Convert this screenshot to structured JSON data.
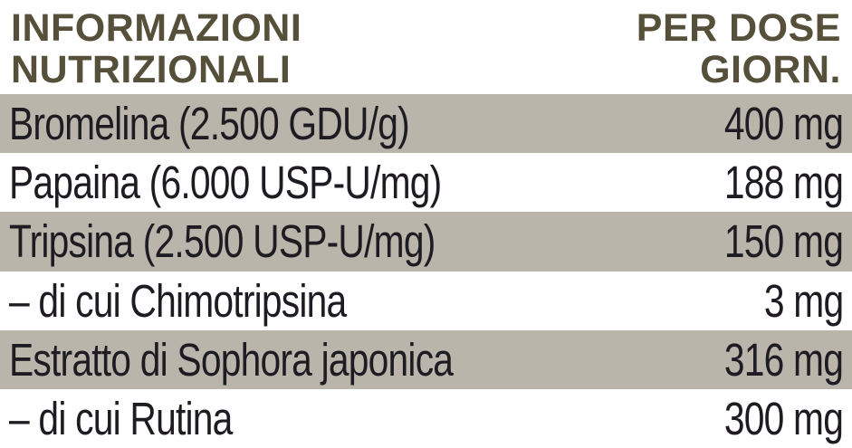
{
  "header": {
    "title_line1": "INFORMAZIONI",
    "title_line2": "NUTRIZIONALI",
    "dose_line1": "PER DOSE",
    "dose_line2": "GIORN."
  },
  "rows": [
    {
      "label": "Bromelina (2.500 GDU/g)",
      "value": "400 mg",
      "shaded": true
    },
    {
      "label": "Papaina (6.000 USP-U/mg)",
      "value": "188 mg",
      "shaded": false
    },
    {
      "label": "Tripsina (2.500 USP-U/mg)",
      "value": "150 mg",
      "shaded": true
    },
    {
      "label": "– di cui Chimotripsina",
      "value": "3 mg",
      "shaded": false
    },
    {
      "label": "Estratto di Sophora japonica",
      "value": "316 mg",
      "shaded": true
    },
    {
      "label": "– di cui Rutina",
      "value": "300 mg",
      "shaded": false
    }
  ],
  "colors": {
    "header_text": "#56503B",
    "row_text": "#1E1C22",
    "shaded_row_bg": "#B9B5AA",
    "page_bg": "#FFFFFF"
  }
}
